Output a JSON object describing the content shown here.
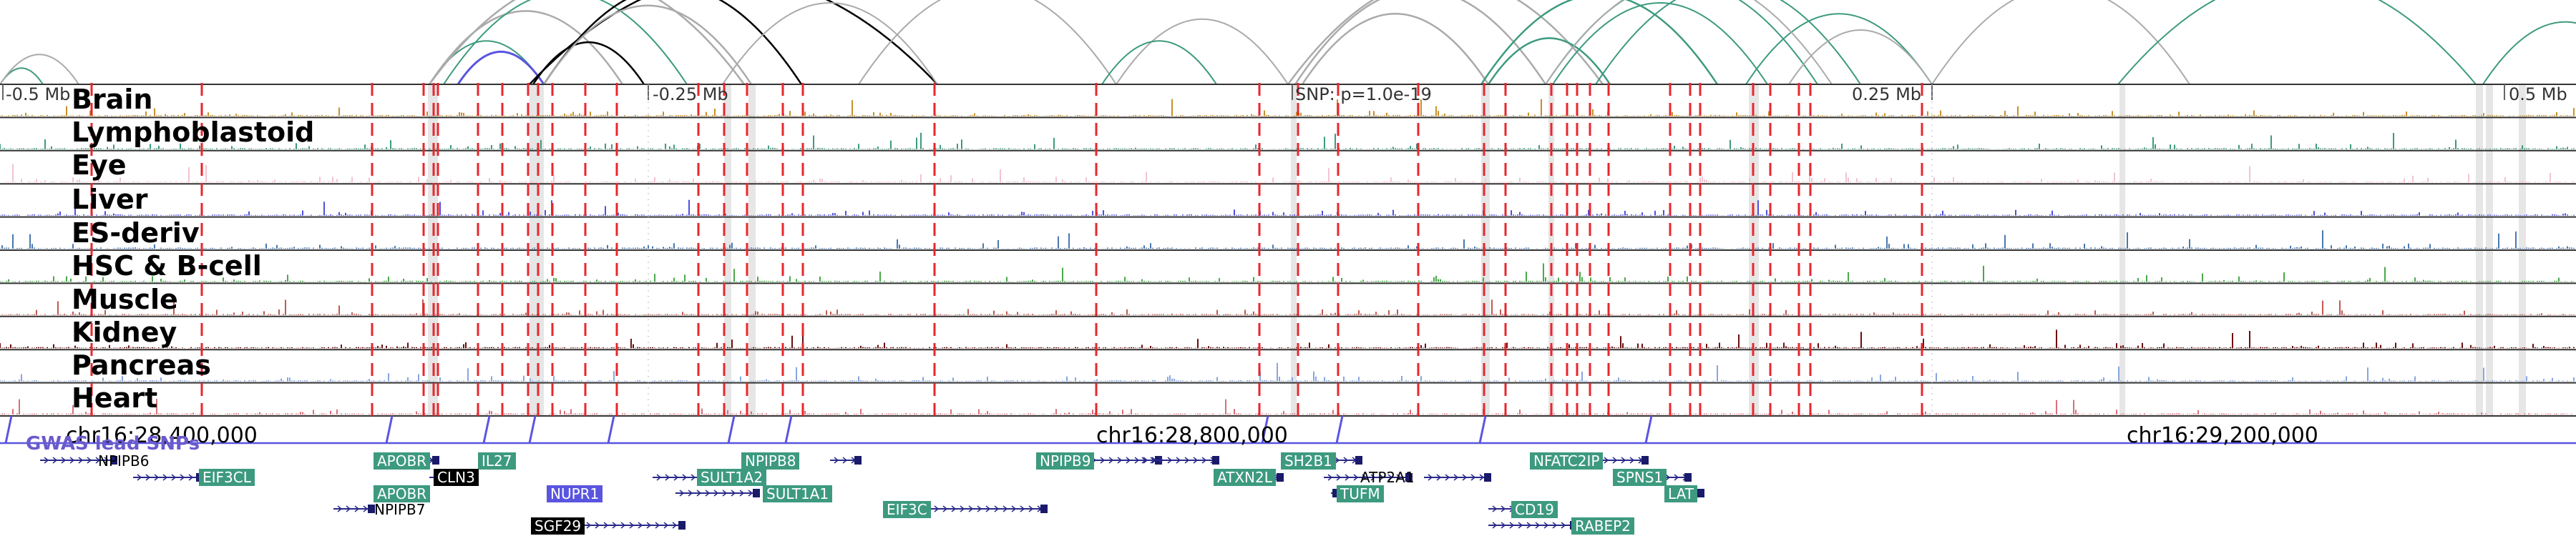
{
  "tracks": [
    {
      "name": "Brain",
      "color": "#c8902a"
    },
    {
      "name": "Lymphoblastoid",
      "color": "#3d9a7f"
    },
    {
      "name": "Eye",
      "color": "#f2c4d2"
    },
    {
      "name": "Liver",
      "color": "#5050e0"
    },
    {
      "name": "ES-deriv",
      "color": "#4a78b0"
    },
    {
      "name": "HSC & B-cell",
      "color": "#4aa84a"
    },
    {
      "name": "Muscle",
      "color": "#c05a50"
    },
    {
      "name": "Kidney",
      "color": "#6b0f0f"
    },
    {
      "name": "Pancreas",
      "color": "#8aa6e0"
    },
    {
      "name": "Heart",
      "color": "#d9707a"
    }
  ],
  "scale_labels": [
    "-0.5 Mb",
    "-0.25 Mb",
    "SNP: p=1.0e-19",
    "0.25 Mb",
    "0.5 Mb"
  ],
  "coordinates": [
    "chr16:28,400,000",
    "chr16:28,800,000",
    "chr16:29,200,000"
  ],
  "gwas_track_label": "GWAS lead SNPs",
  "genes": [
    {
      "name": "NPIPB6",
      "style": "plain"
    },
    {
      "name": "EIF3CL",
      "style": "teal"
    },
    {
      "name": "APOBR",
      "style": "teal"
    },
    {
      "name": "IL27",
      "style": "teal"
    },
    {
      "name": "CLN3",
      "style": "black"
    },
    {
      "name": "APOBR",
      "style": "teal"
    },
    {
      "name": "NPIPB7",
      "style": "plain"
    },
    {
      "name": "NUPR1",
      "style": "blue"
    },
    {
      "name": "SGF29",
      "style": "black"
    },
    {
      "name": "NPIPB8",
      "style": "teal"
    },
    {
      "name": "SULT1A2",
      "style": "teal"
    },
    {
      "name": "SULT1A1",
      "style": "teal"
    },
    {
      "name": "EIF3C",
      "style": "teal"
    },
    {
      "name": "NPIPB9",
      "style": "teal"
    },
    {
      "name": "SH2B1",
      "style": "teal"
    },
    {
      "name": "ATXN2L",
      "style": "teal"
    },
    {
      "name": "ATP2A1",
      "style": "plain"
    },
    {
      "name": "TUFM",
      "style": "teal"
    },
    {
      "name": "NFATC2IP",
      "style": "teal"
    },
    {
      "name": "SPNS1",
      "style": "teal"
    },
    {
      "name": "LAT",
      "style": "teal"
    },
    {
      "name": "CD19",
      "style": "teal"
    },
    {
      "name": "RABEP2",
      "style": "teal"
    }
  ]
}
